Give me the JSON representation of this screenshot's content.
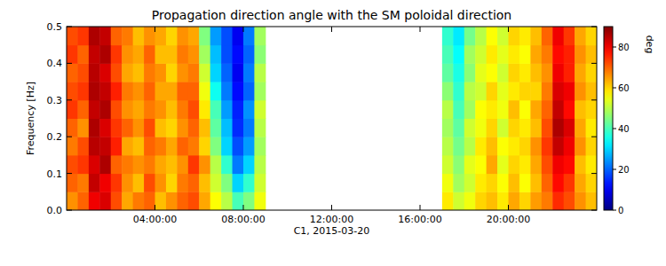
{
  "chart_data": {
    "type": "heatmap",
    "title": "Propagation direction angle with the SM poloidal direction",
    "x_label": "C1, 2015-03-20",
    "y_label": "Frequency [Hz]",
    "xlim": [
      0,
      24
    ],
    "xticks": [
      {
        "value": 4,
        "label": "04:00:00"
      },
      {
        "value": 8,
        "label": "08:00:00"
      },
      {
        "value": 12,
        "label": "12:00:00"
      },
      {
        "value": 16,
        "label": "16:00:00"
      },
      {
        "value": 20,
        "label": "20:00:00"
      }
    ],
    "ylim": [
      0,
      0.5
    ],
    "yticks": [
      {
        "value": 0,
        "label": "0.0"
      },
      {
        "value": 0.1,
        "label": "0.1"
      },
      {
        "value": 0.2,
        "label": "0.2"
      },
      {
        "value": 0.3,
        "label": "0.3"
      },
      {
        "value": 0.4,
        "label": "0.4"
      },
      {
        "value": 0.5,
        "label": "0.5"
      }
    ],
    "x_edges": [
      0,
      0.5,
      1,
      1.5,
      2,
      2.5,
      3,
      3.5,
      4,
      4.5,
      5,
      5.5,
      6,
      6.5,
      7,
      7.5,
      8,
      8.5,
      9,
      9.5,
      10,
      10.5,
      11,
      11.5,
      12,
      12.5,
      13,
      13.5,
      14,
      14.5,
      15,
      15.5,
      16,
      16.5,
      17,
      17.5,
      18,
      18.5,
      19,
      19.5,
      20,
      20.5,
      21,
      21.5,
      22,
      22.5,
      23,
      23.5,
      24
    ],
    "y_edges": [
      0,
      0.05,
      0.1,
      0.15,
      0.2,
      0.25,
      0.3,
      0.35,
      0.4,
      0.45,
      0.5
    ],
    "cells": [
      [
        66,
        70,
        80,
        82,
        72,
        64,
        68,
        70,
        62,
        66,
        70,
        72,
        64,
        56,
        50,
        40,
        45,
        55,
        null,
        null,
        null,
        null,
        null,
        null,
        null,
        null,
        null,
        null,
        null,
        null,
        null,
        null,
        null,
        null,
        58,
        52,
        55,
        60,
        62,
        58,
        64,
        60,
        65,
        68,
        75,
        72,
        66,
        62
      ],
      [
        70,
        68,
        84,
        80,
        74,
        66,
        62,
        72,
        66,
        60,
        68,
        70,
        62,
        52,
        45,
        30,
        38,
        52,
        null,
        null,
        null,
        null,
        null,
        null,
        null,
        null,
        null,
        null,
        null,
        null,
        null,
        null,
        null,
        null,
        55,
        48,
        52,
        58,
        60,
        56,
        62,
        56,
        62,
        70,
        78,
        74,
        64,
        60
      ],
      [
        72,
        74,
        82,
        86,
        70,
        68,
        66,
        68,
        64,
        62,
        66,
        74,
        66,
        50,
        38,
        22,
        30,
        50,
        null,
        null,
        null,
        null,
        null,
        null,
        null,
        null,
        null,
        null,
        null,
        null,
        null,
        null,
        null,
        null,
        52,
        46,
        54,
        56,
        64,
        54,
        60,
        58,
        64,
        72,
        80,
        78,
        62,
        58
      ],
      [
        68,
        72,
        85,
        84,
        76,
        64,
        62,
        70,
        68,
        64,
        70,
        68,
        60,
        45,
        30,
        18,
        25,
        48,
        null,
        null,
        null,
        null,
        null,
        null,
        null,
        null,
        null,
        null,
        null,
        null,
        null,
        null,
        null,
        null,
        50,
        44,
        50,
        58,
        62,
        56,
        58,
        60,
        66,
        74,
        84,
        80,
        66,
        60
      ],
      [
        70,
        66,
        86,
        82,
        74,
        70,
        66,
        72,
        62,
        60,
        66,
        70,
        62,
        42,
        28,
        15,
        22,
        50,
        null,
        null,
        null,
        null,
        null,
        null,
        null,
        null,
        null,
        null,
        null,
        null,
        null,
        null,
        null,
        null,
        48,
        42,
        52,
        55,
        60,
        52,
        60,
        58,
        62,
        72,
        86,
        82,
        64,
        58
      ],
      [
        74,
        70,
        84,
        86,
        72,
        66,
        64,
        68,
        66,
        62,
        68,
        72,
        58,
        40,
        25,
        14,
        24,
        52,
        null,
        null,
        null,
        null,
        null,
        null,
        null,
        null,
        null,
        null,
        null,
        null,
        null,
        null,
        null,
        null,
        50,
        40,
        48,
        56,
        58,
        55,
        62,
        56,
        64,
        70,
        84,
        78,
        62,
        60
      ],
      [
        72,
        74,
        86,
        84,
        76,
        68,
        66,
        70,
        64,
        64,
        70,
        70,
        55,
        35,
        22,
        12,
        20,
        48,
        null,
        null,
        null,
        null,
        null,
        null,
        null,
        null,
        null,
        null,
        null,
        null,
        null,
        null,
        null,
        null,
        46,
        38,
        50,
        52,
        60,
        54,
        58,
        60,
        60,
        68,
        82,
        80,
        66,
        62
      ],
      [
        70,
        72,
        85,
        82,
        72,
        64,
        62,
        68,
        66,
        60,
        66,
        68,
        52,
        30,
        20,
        10,
        22,
        50,
        null,
        null,
        null,
        null,
        null,
        null,
        null,
        null,
        null,
        null,
        null,
        null,
        null,
        null,
        null,
        null,
        42,
        36,
        46,
        54,
        56,
        52,
        60,
        58,
        62,
        66,
        80,
        76,
        64,
        60
      ],
      [
        74,
        70,
        84,
        86,
        74,
        66,
        64,
        70,
        62,
        62,
        68,
        66,
        48,
        28,
        18,
        12,
        20,
        46,
        null,
        null,
        null,
        null,
        null,
        null,
        null,
        null,
        null,
        null,
        null,
        null,
        null,
        null,
        null,
        null,
        40,
        34,
        48,
        52,
        58,
        54,
        58,
        56,
        64,
        68,
        78,
        76,
        66,
        62
      ],
      [
        72,
        74,
        86,
        84,
        70,
        68,
        62,
        66,
        64,
        60,
        66,
        64,
        45,
        25,
        18,
        10,
        22,
        48,
        null,
        null,
        null,
        null,
        null,
        null,
        null,
        null,
        null,
        null,
        null,
        null,
        null,
        null,
        null,
        null,
        38,
        32,
        44,
        50,
        56,
        52,
        60,
        58,
        62,
        70,
        80,
        74,
        64,
        60
      ]
    ],
    "colorbar": {
      "lim": [
        0,
        90
      ],
      "ticks": [
        0,
        20,
        40,
        60,
        80
      ],
      "label": "deg"
    }
  }
}
